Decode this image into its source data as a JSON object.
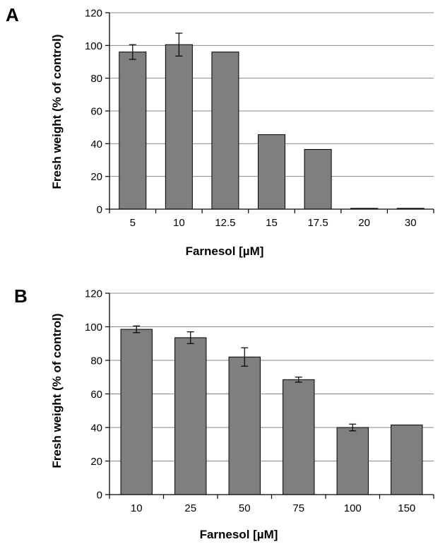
{
  "chart_data": [
    {
      "type": "bar",
      "panel_label": "A",
      "categories": [
        "5",
        "10",
        "12.5",
        "15",
        "17.5",
        "20",
        "30"
      ],
      "values": [
        96,
        100.5,
        96,
        45.5,
        36.5,
        0.5,
        0.5
      ],
      "error": [
        4.5,
        7,
        0,
        0,
        0,
        0,
        0
      ],
      "xlabel": "Farnesol [µM]",
      "ylabel": "Fresh weight (% of control)",
      "ylim": [
        0,
        120
      ],
      "yticks": [
        "0",
        "20",
        "40",
        "60",
        "80",
        "100",
        "120"
      ],
      "grid": true,
      "bar_color": "#7f7f7f"
    },
    {
      "type": "bar",
      "panel_label": "B",
      "categories": [
        "10",
        "25",
        "50",
        "75",
        "100",
        "150"
      ],
      "values": [
        98.5,
        93.5,
        82,
        68.5,
        40,
        41.5
      ],
      "error": [
        2,
        3.5,
        5.5,
        1.5,
        2,
        0
      ],
      "xlabel": "Farnesol [µM]",
      "ylabel": "Fresh weight (% of control)",
      "ylim": [
        0,
        120
      ],
      "yticks": [
        "0",
        "20",
        "40",
        "60",
        "80",
        "100",
        "120"
      ],
      "grid": true,
      "bar_color": "#7f7f7f"
    }
  ]
}
